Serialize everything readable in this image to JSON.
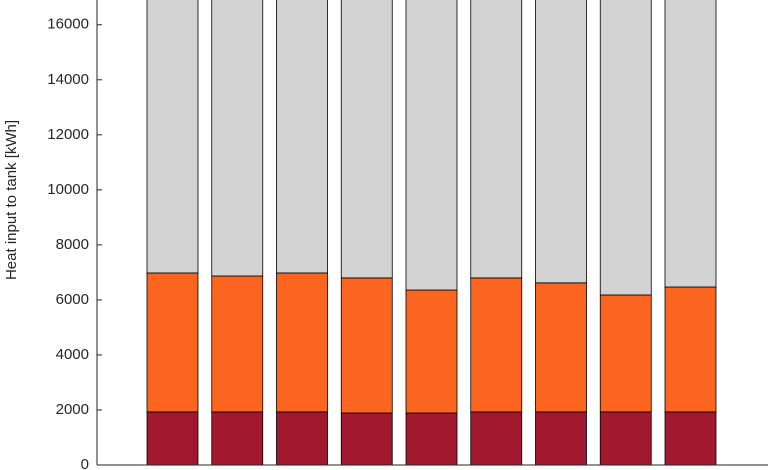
{
  "chart_data": {
    "type": "stacked-bar",
    "y_label": "Heat input to tank [kWh]",
    "categories": [
      null,
      null,
      null,
      null,
      null,
      null,
      null,
      null,
      null
    ],
    "series": [
      {
        "color": "#a2192f",
        "values": [
          1930,
          1930,
          1930,
          1890,
          1890,
          1930,
          1930,
          1930,
          1930
        ]
      },
      {
        "color": "#fc6520",
        "values": [
          5050,
          4940,
          5050,
          4910,
          4470,
          4870,
          4690,
          4250,
          4540
        ]
      },
      {
        "color": "#d3d3d3",
        "values": [
          10020,
          10130,
          10020,
          10200,
          10640,
          10200,
          10380,
          10820,
          10530
        ]
      }
    ],
    "ylim": [
      0,
      16900
    ],
    "yticks": [
      0,
      2000,
      4000,
      6000,
      8000,
      10000,
      12000,
      14000,
      16000
    ]
  }
}
